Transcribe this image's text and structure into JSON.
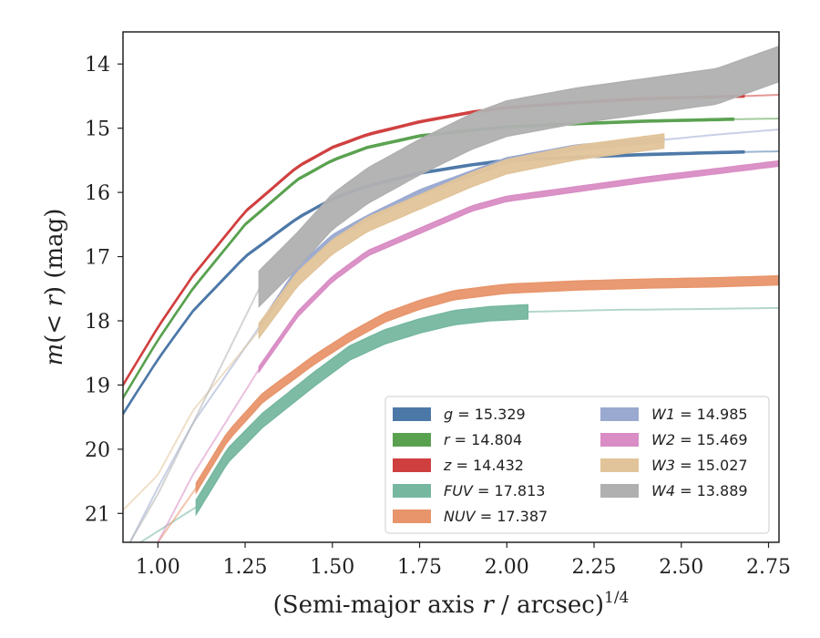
{
  "chart_data": {
    "type": "line",
    "xlabel": "(Semi-major axis r / arcsec)^1/4",
    "ylabel": "m(< r) (mag)",
    "xlim": [
      0.9,
      2.78
    ],
    "ylim": [
      21.45,
      13.5
    ],
    "y_inverted": true,
    "grid": false,
    "legend_position": "lower-right",
    "x_ticks": [
      "1.00",
      "1.25",
      "1.50",
      "1.75",
      "2.00",
      "2.25",
      "2.50",
      "2.75"
    ],
    "x_tick_values": [
      1.0,
      1.25,
      1.5,
      1.75,
      2.0,
      2.25,
      2.5,
      2.75
    ],
    "y_ticks": [
      "14",
      "15",
      "16",
      "17",
      "18",
      "19",
      "20",
      "21"
    ],
    "y_tick_values": [
      14,
      15,
      16,
      17,
      18,
      19,
      20,
      21
    ],
    "series": [
      {
        "name": "g = 15.329",
        "label_parts": [
          "g",
          " = 15.329"
        ],
        "color": "#4c78a8",
        "band": 0.03,
        "extension_start": 2.68,
        "x": [
          0.9,
          1.0,
          1.1,
          1.25,
          1.4,
          1.5,
          1.6,
          1.75,
          1.9,
          2.0,
          2.2,
          2.4,
          2.6,
          2.68,
          2.78
        ],
        "y": [
          19.45,
          18.6,
          17.85,
          17.0,
          16.4,
          16.1,
          15.9,
          15.7,
          15.57,
          15.5,
          15.45,
          15.41,
          15.38,
          15.37,
          15.36
        ]
      },
      {
        "name": "r = 14.804",
        "label_parts": [
          "r",
          " = 14.804"
        ],
        "color": "#59a14f",
        "band": 0.03,
        "extension_start": 2.65,
        "x": [
          0.9,
          1.0,
          1.1,
          1.25,
          1.4,
          1.5,
          1.6,
          1.75,
          1.9,
          2.0,
          2.2,
          2.4,
          2.65,
          2.78
        ],
        "y": [
          19.2,
          18.3,
          17.5,
          16.5,
          15.8,
          15.5,
          15.3,
          15.12,
          15.03,
          14.98,
          14.93,
          14.89,
          14.86,
          14.85
        ]
      },
      {
        "name": "z = 14.432",
        "label_parts": [
          "z",
          " = 14.432"
        ],
        "color": "#d03f3f",
        "band": 0.03,
        "extension_start": 2.68,
        "x": [
          0.9,
          1.0,
          1.1,
          1.25,
          1.4,
          1.5,
          1.6,
          1.75,
          1.9,
          2.0,
          2.2,
          2.4,
          2.6,
          2.68,
          2.78
        ],
        "y": [
          19.0,
          18.1,
          17.3,
          16.3,
          15.6,
          15.3,
          15.1,
          14.9,
          14.75,
          14.68,
          14.6,
          14.54,
          14.51,
          14.5,
          14.48
        ]
      },
      {
        "name": "FUV = 17.813",
        "label_parts": [
          "FUV",
          " = 17.813"
        ],
        "color": "#76b7a0",
        "band": 0.22,
        "main_start": 1.11,
        "extension_start": 2.06,
        "x": [
          0.95,
          1.11,
          1.2,
          1.3,
          1.45,
          1.55,
          1.65,
          1.75,
          1.85,
          1.95,
          2.06,
          2.3,
          2.5,
          2.78
        ],
        "y": [
          21.45,
          20.9,
          20.1,
          19.55,
          18.9,
          18.5,
          18.25,
          18.08,
          17.95,
          17.89,
          17.86,
          17.83,
          17.82,
          17.8
        ]
      },
      {
        "name": "NUV = 17.387",
        "label_parts": [
          "NUV",
          " = 17.387"
        ],
        "color": "#e8956b",
        "band": 0.14,
        "main_start": 1.11,
        "extension_start": 2.78,
        "x": [
          1.0,
          1.11,
          1.2,
          1.3,
          1.45,
          1.55,
          1.65,
          1.75,
          1.85,
          2.0,
          2.2,
          2.4,
          2.6,
          2.78
        ],
        "y": [
          21.45,
          20.6,
          19.8,
          19.2,
          18.6,
          18.25,
          17.95,
          17.75,
          17.6,
          17.5,
          17.45,
          17.42,
          17.4,
          17.37
        ]
      },
      {
        "name": "W1 = 14.985",
        "label_parts": [
          "W1",
          " = 14.985"
        ],
        "color": "#9aa9cf",
        "band": 0.08,
        "main_start": 1.29,
        "extension_start": 2.45,
        "x": [
          0.92,
          1.0,
          1.1,
          1.29,
          1.4,
          1.5,
          1.6,
          1.75,
          1.9,
          2.0,
          2.2,
          2.45,
          2.6,
          2.78
        ],
        "y": [
          21.45,
          20.6,
          19.6,
          18.1,
          17.2,
          16.7,
          16.4,
          16.0,
          15.7,
          15.5,
          15.3,
          15.18,
          15.1,
          15.02
        ]
      },
      {
        "name": "W2 = 15.469",
        "label_parts": [
          "W2",
          " = 15.469"
        ],
        "color": "#d98dc4",
        "band": 0.08,
        "main_start": 1.29,
        "extension_start": 2.78,
        "x": [
          1.0,
          1.1,
          1.29,
          1.4,
          1.5,
          1.6,
          1.75,
          1.9,
          2.0,
          2.2,
          2.4,
          2.6,
          2.78
        ],
        "y": [
          21.45,
          20.4,
          18.75,
          17.9,
          17.35,
          16.95,
          16.6,
          16.25,
          16.1,
          15.95,
          15.8,
          15.67,
          15.55
        ]
      },
      {
        "name": "W3 = 15.027",
        "label_parts": [
          "W3",
          " = 15.027"
        ],
        "color": "#e2c49a",
        "band": 0.22,
        "main_start": 1.29,
        "extension_start": 2.45,
        "x": [
          0.9,
          1.0,
          1.1,
          1.29,
          1.4,
          1.5,
          1.6,
          1.75,
          1.9,
          2.0,
          2.2,
          2.45
        ],
        "y": [
          20.95,
          20.4,
          19.4,
          18.15,
          17.35,
          16.85,
          16.5,
          16.15,
          15.8,
          15.6,
          15.38,
          15.2
        ]
      },
      {
        "name": "W4 = 13.889",
        "label_parts": [
          "W4",
          " = 13.889"
        ],
        "color": "#b0b0b0",
        "band": 0.55,
        "main_start": 1.29,
        "extension_start": 2.78,
        "x": [
          0.92,
          1.0,
          1.1,
          1.29,
          1.4,
          1.5,
          1.6,
          1.75,
          1.9,
          2.0,
          2.2,
          2.4,
          2.6,
          2.78
        ],
        "y": [
          21.45,
          20.7,
          19.6,
          17.5,
          16.9,
          16.3,
          15.9,
          15.45,
          15.05,
          14.85,
          14.65,
          14.5,
          14.35,
          14.0
        ]
      }
    ]
  }
}
